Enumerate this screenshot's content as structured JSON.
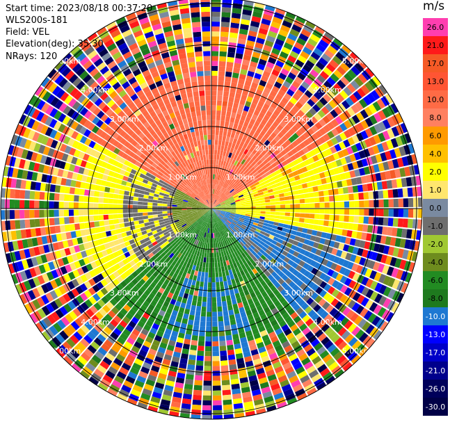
{
  "header": {
    "start_time": "Start time: 2023/08/18 00:37:20",
    "instrument": "WLS200s-181",
    "field": "Field: VEL",
    "elevation": "Elevation(deg): 35.30",
    "nrays": "NRays: 120"
  },
  "colorbar": {
    "unit": "m/s",
    "entries": [
      {
        "label": "26.0",
        "color": "#ff3eb0"
      },
      {
        "label": "21.0",
        "color": "#ff1a1a"
      },
      {
        "label": "17.0",
        "color": "#f55a26"
      },
      {
        "label": "13.0",
        "color": "#ff5533"
      },
      {
        "label": "10.0",
        "color": "#ff6b45"
      },
      {
        "label": "8.0",
        "color": "#ff8060"
      },
      {
        "label": "6.0",
        "color": "#ff9a00"
      },
      {
        "label": "4.0",
        "color": "#ffc000"
      },
      {
        "label": "2.0",
        "color": "#ffff00"
      },
      {
        "label": "1.0",
        "color": "#ffe66e"
      },
      {
        "label": "0.0",
        "color": "#7a8aa0"
      },
      {
        "label": "-1.0",
        "color": "#6e6e6e"
      },
      {
        "label": "-2.0",
        "color": "#a0c832"
      },
      {
        "label": "-4.0",
        "color": "#6e8c1e"
      },
      {
        "label": "-6.0",
        "color": "#228b22"
      },
      {
        "label": "-8.0",
        "color": "#1e7a1e"
      },
      {
        "label": "-10.0",
        "color": "#1e78d2"
      },
      {
        "label": "-13.0",
        "color": "#0000ff"
      },
      {
        "label": "-17.0",
        "color": "#0000c8"
      },
      {
        "label": "-21.0",
        "color": "#00008c"
      },
      {
        "label": "-26.0",
        "color": "#00005a"
      },
      {
        "label": "-30.0",
        "color": "#000046"
      }
    ]
  },
  "chart_data": {
    "type": "heatmap",
    "projection": "polar PPI",
    "rays": 120,
    "range_rings_km": [
      1.0,
      2.0,
      3.0,
      4.0,
      5.0
    ],
    "ring_labels": [
      {
        "label": "1.00km"
      },
      {
        "label": "2.00km"
      },
      {
        "label": "3.00km"
      },
      {
        "label": "4.00km"
      },
      {
        "label": "5.00km"
      }
    ],
    "max_range_km": 5.2,
    "sectors": [
      {
        "name": "north",
        "dominant": "10.0"
      },
      {
        "name": "east",
        "dominant": "2.0"
      },
      {
        "name": "west",
        "dominant": "-1.0"
      },
      {
        "name": "south",
        "dominant": "-6.0"
      },
      {
        "name": "south-east",
        "dominant": "-10.0"
      }
    ],
    "noise_begins_km": 3.7,
    "grid": true
  }
}
